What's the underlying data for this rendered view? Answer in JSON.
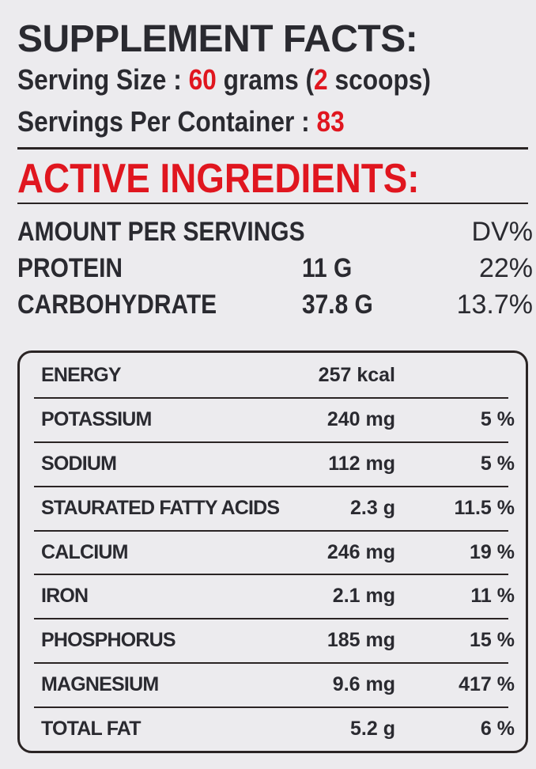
{
  "header": {
    "title": "SUPPLEMENT FACTS:",
    "serving_size": {
      "label": "Serving Size :",
      "amount": "60",
      "unit": "grams (",
      "scoops": "2",
      "scoops_unit": "scoops)"
    },
    "servings_per_container": {
      "label": "Servings Per Container :",
      "amount": "83"
    }
  },
  "active": {
    "title": "ACTIVE INGREDIENTS:",
    "columns": [
      "AMOUNT PER SERVINGS",
      "DV%"
    ],
    "rows": [
      [
        "PROTEIN",
        "11 G",
        "22%"
      ],
      [
        "CARBOHYDRATE",
        "37.8 G",
        "13.7%"
      ]
    ]
  },
  "table": {
    "rows": [
      [
        "ENERGY",
        "257 kcal"
      ],
      [
        "POTASSIUM",
        "240 mg",
        "5 %"
      ],
      [
        "SODIUM",
        "112 mg",
        "5 %"
      ],
      [
        "STAURATED FATTY ACIDS",
        "2.3 g",
        "11.5 %"
      ],
      [
        "CALCIUM",
        "246 mg",
        "19 %"
      ],
      [
        "IRON",
        "2.1 mg",
        "11 %"
      ],
      [
        "PHOSPHORUS",
        "185 mg",
        "15 %"
      ],
      [
        "MAGNESIUM",
        "9.6 mg",
        "417 %"
      ],
      [
        "TOTAL FAT",
        "5.2 g",
        "6 %"
      ]
    ]
  }
}
